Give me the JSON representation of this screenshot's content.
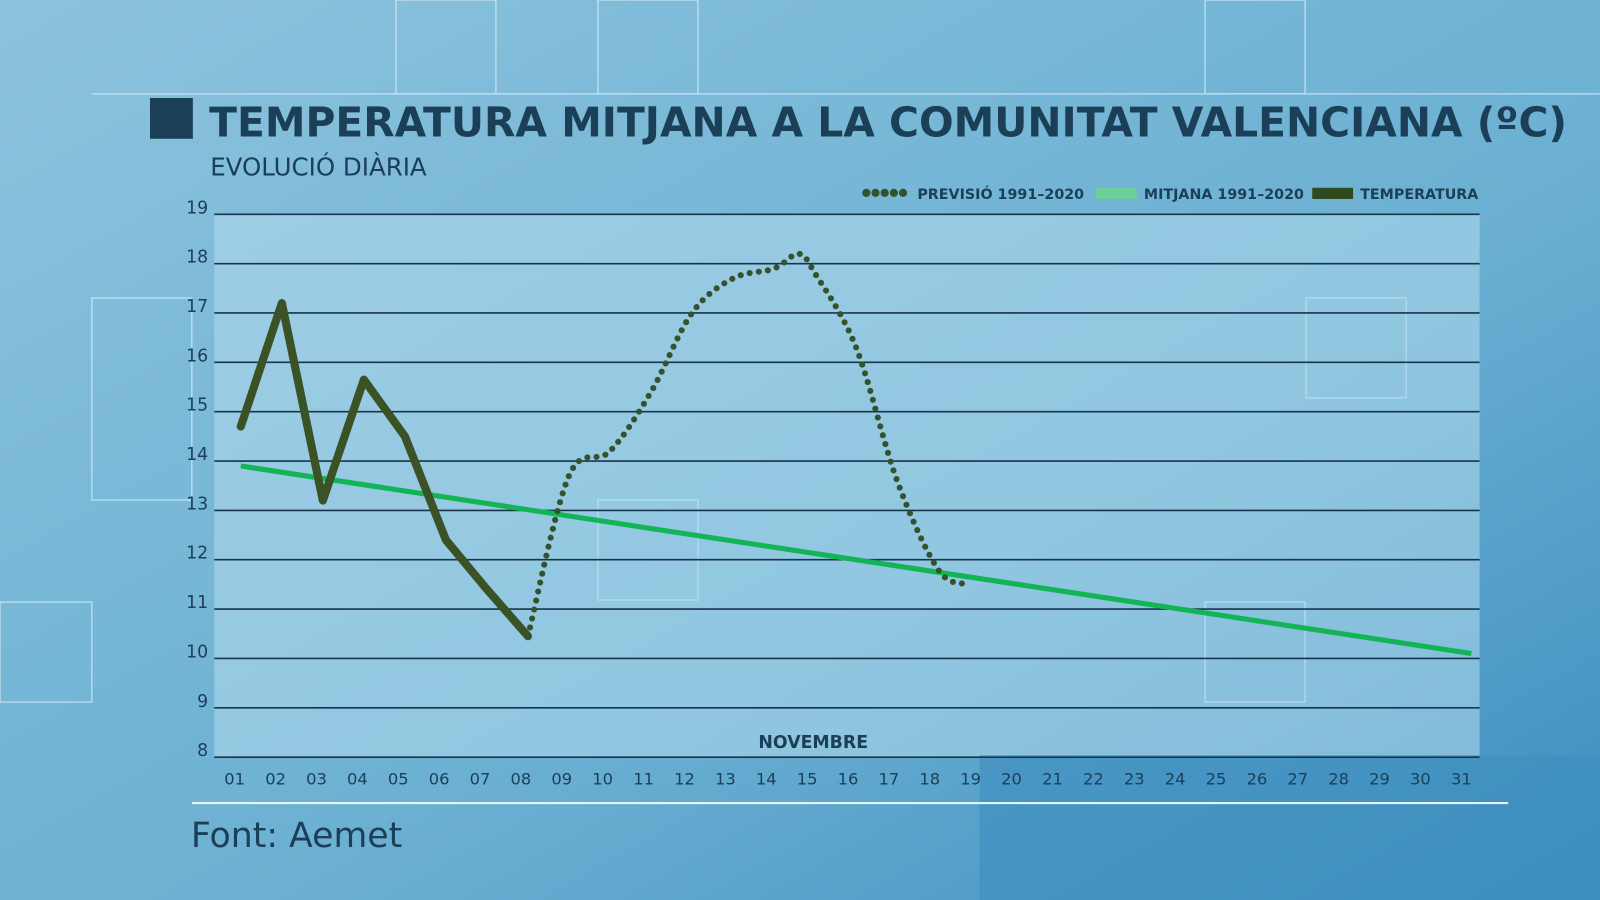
{
  "title": "TEMPERATURA MITJANA A LA COMUNITAT VALENCIANA (ºC)",
  "subtitle": "EVOLUCIÓ DIÀRIA",
  "source": "Font: Aemet",
  "colors": {
    "title": "#1b3f57",
    "temperature": "#3a5226",
    "forecast": "#34522b",
    "average": "#12b455",
    "grid": "#17354a"
  },
  "chart_data": {
    "type": "line",
    "xlabel": "NOVEMBRE",
    "ylabel": "",
    "ylim": [
      8,
      19
    ],
    "yticks": [
      "8",
      "9",
      "10",
      "11",
      "12",
      "13",
      "14",
      "15",
      "16",
      "17",
      "18",
      "19"
    ],
    "categories": [
      "01",
      "02",
      "03",
      "04",
      "05",
      "06",
      "07",
      "08",
      "09",
      "10",
      "11",
      "12",
      "13",
      "14",
      "15",
      "16",
      "17",
      "18",
      "19",
      "20",
      "21",
      "22",
      "23",
      "24",
      "25",
      "26",
      "27",
      "28",
      "29",
      "30",
      "31"
    ],
    "grid": true,
    "legend_position": "top-right",
    "legend": [
      "PREVISIÓ 1991–2020",
      "MITJANA 1991–2020",
      "TEMPERATURA"
    ],
    "series": [
      {
        "name": "TEMPERATURA",
        "style": "solid",
        "x": [
          1,
          2,
          3,
          4,
          5,
          6,
          7,
          8
        ],
        "values": [
          14.7,
          17.2,
          13.2,
          15.65,
          14.5,
          12.4,
          11.4,
          10.45
        ]
      },
      {
        "name": "PREVISIÓ 1991–2020",
        "style": "dotted",
        "x": [
          8,
          9,
          10,
          11,
          12,
          13,
          14,
          14.6,
          15,
          16,
          17,
          18,
          18.7
        ],
        "values": [
          10.45,
          13.7,
          14.2,
          15.4,
          17.0,
          17.7,
          17.9,
          18.2,
          17.8,
          16.3,
          13.6,
          11.8,
          11.5
        ]
      },
      {
        "name": "MITJANA 1991–2020",
        "style": "solid",
        "x": [
          1,
          31
        ],
        "values": [
          13.9,
          10.1
        ]
      }
    ]
  }
}
